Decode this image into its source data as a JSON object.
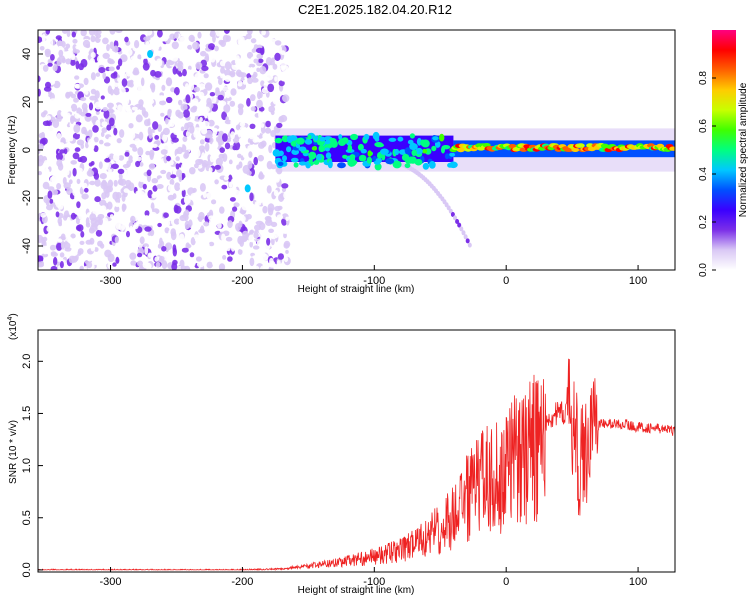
{
  "title": "C2E1.2025.182.04.20.R12",
  "chart_data": [
    {
      "type": "heatmap",
      "xlabel": "Height of straight line (km)",
      "ylabel": "Frequency (Hz)",
      "xlim": [
        -355,
        128
      ],
      "ylim": [
        -50,
        50
      ],
      "xticks": [
        -300,
        -200,
        -100,
        0,
        100
      ],
      "yticks": [
        -40,
        -20,
        0,
        20,
        40
      ],
      "colorbar": {
        "label": "Normalized spectral amplitude",
        "range": [
          0,
          1
        ],
        "ticks": [
          "0.0",
          "0.2",
          "0.4",
          "0.6",
          "0.8"
        ],
        "colormap": [
          "#ffffff",
          "#d9c8f5",
          "#7b2fe8",
          "#3a00ff",
          "#0050ff",
          "#00c8ff",
          "#00ff80",
          "#40ff00",
          "#c8ff00",
          "#ffcc00",
          "#ff6000",
          "#ff0000",
          "#ff0080"
        ]
      },
      "regions": [
        {
          "x": [
            -355,
            -165
          ],
          "freq_range": [
            -50,
            50
          ],
          "amplitude": "0.0-0.2 scattered"
        },
        {
          "x": [
            -175,
            -40
          ],
          "freq_range": [
            -10,
            8
          ],
          "amplitude": "0.2-0.5"
        },
        {
          "x": [
            -40,
            128
          ],
          "freq_range": [
            -2,
            3
          ],
          "amplitude": "0.5-0.95"
        }
      ]
    },
    {
      "type": "line",
      "xlabel": "Height of straight line (km)",
      "ylabel": "SNR (10 * v/v)",
      "y_multiplier": "(x10",
      "y_multiplier_exp": "4",
      "y_multiplier_close": ")",
      "xlim": [
        -355,
        128
      ],
      "ylim": [
        -0.02,
        2.3
      ],
      "xticks": [
        -300,
        -200,
        -100,
        0,
        100
      ],
      "yticks": [
        "0.0",
        "0.5",
        "1.0",
        "1.5",
        "2.0"
      ],
      "series": [
        {
          "color": "#ee2222",
          "x": [
            -355,
            -300,
            -250,
            -200,
            -170,
            -160,
            -140,
            -120,
            -100,
            -80,
            -60,
            -40,
            -30,
            -20,
            -10,
            0,
            10,
            20,
            30,
            40,
            50,
            55,
            60,
            65,
            70,
            80,
            90,
            95,
            100,
            110,
            120,
            128
          ],
          "y": [
            0.0,
            0.0,
            0.0,
            0.0,
            0.01,
            0.03,
            0.06,
            0.1,
            0.15,
            0.22,
            0.35,
            0.6,
            0.8,
            0.95,
            1.05,
            1.15,
            1.25,
            1.35,
            1.45,
            1.5,
            1.5,
            1.0,
            1.1,
            1.45,
            1.4,
            1.4,
            1.4,
            1.38,
            1.37,
            1.36,
            1.35,
            1.33
          ]
        }
      ]
    }
  ]
}
